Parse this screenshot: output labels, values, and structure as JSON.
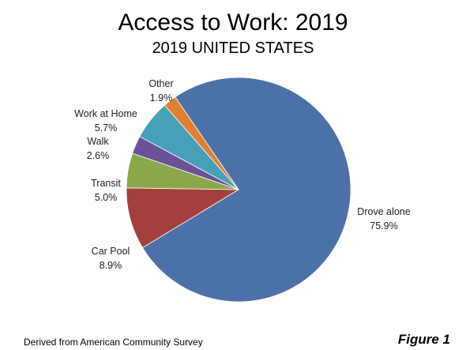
{
  "chart_data": {
    "type": "pie",
    "title": "Access to Work: 2019",
    "subtitle": "2019 UNITED STATES",
    "slices": [
      {
        "label": "Drove alone",
        "value": 75.9,
        "value_label": "75.9%",
        "color": "#4a72a8"
      },
      {
        "label": "Car Pool",
        "value": 8.9,
        "value_label": "8.9%",
        "color": "#a4403c"
      },
      {
        "label": "Transit",
        "value": 5.0,
        "value_label": "5.0%",
        "color": "#8aa84a"
      },
      {
        "label": "Walk",
        "value": 2.6,
        "value_label": "2.6%",
        "color": "#6b5296"
      },
      {
        "label": "Work at Home",
        "value": 5.7,
        "value_label": "5.7%",
        "color": "#45a0b8"
      },
      {
        "label": "Other",
        "value": 1.9,
        "value_label": "1.9%",
        "color": "#e07f32"
      }
    ]
  },
  "footer": {
    "source": "Derived from American Community Survey",
    "figure": "Figure 1"
  }
}
